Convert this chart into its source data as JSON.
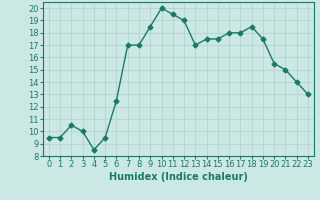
{
  "x": [
    0,
    1,
    2,
    3,
    4,
    5,
    6,
    7,
    8,
    9,
    10,
    11,
    12,
    13,
    14,
    15,
    16,
    17,
    18,
    19,
    20,
    21,
    22,
    23
  ],
  "y": [
    9.5,
    9.5,
    10.5,
    10.0,
    8.5,
    9.5,
    12.5,
    17.0,
    17.0,
    18.5,
    20.0,
    19.5,
    19.0,
    17.0,
    17.5,
    17.5,
    18.0,
    18.0,
    18.5,
    17.5,
    15.5,
    15.0,
    14.0,
    13.0
  ],
  "line_color": "#1a7a6a",
  "marker": "D",
  "markersize": 2.5,
  "linewidth": 1.0,
  "xlabel": "Humidex (Indice chaleur)",
  "xlim": [
    -0.5,
    23.5
  ],
  "ylim": [
    8,
    20.5
  ],
  "yticks": [
    8,
    9,
    10,
    11,
    12,
    13,
    14,
    15,
    16,
    17,
    18,
    19,
    20
  ],
  "xticks": [
    0,
    1,
    2,
    3,
    4,
    5,
    6,
    7,
    8,
    9,
    10,
    11,
    12,
    13,
    14,
    15,
    16,
    17,
    18,
    19,
    20,
    21,
    22,
    23
  ],
  "bg_color": "#cce8e4",
  "grid_color": "#b0d0cc",
  "label_fontsize": 7.0,
  "tick_fontsize": 6.0,
  "tick_color": "#1a7a6a",
  "label_color": "#1a7a6a"
}
